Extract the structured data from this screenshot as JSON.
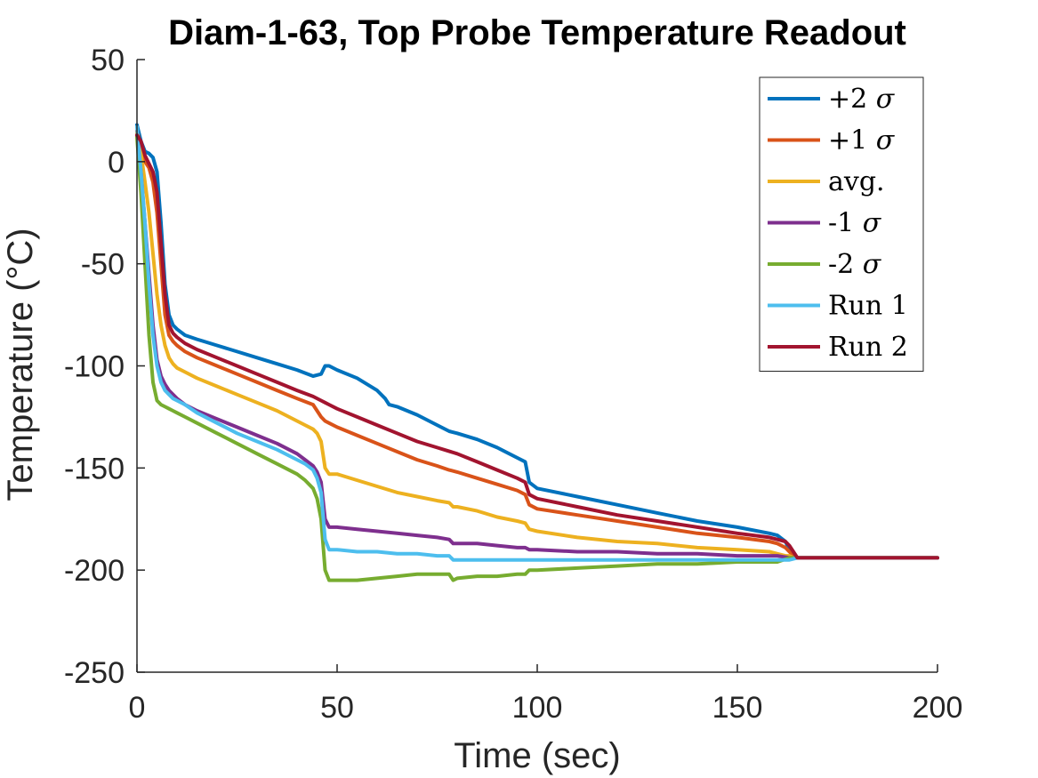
{
  "chart_data": {
    "type": "line",
    "title": "Diam-1-63, Top Probe Temperature Readout",
    "xlabel": "Time (sec)",
    "ylabel": "Temperature (°C)",
    "xlim": [
      0,
      200
    ],
    "ylim": [
      -250,
      50
    ],
    "xticks": [
      0,
      50,
      100,
      150,
      200
    ],
    "yticks": [
      50,
      0,
      -50,
      -100,
      -150,
      -200,
      -250
    ],
    "grid": false,
    "legend_position": "top-right",
    "series": [
      {
        "name": "+2 σ",
        "label_main": "+2",
        "label_sym": "σ",
        "color": "#0072BD",
        "x": [
          0,
          1,
          2,
          3,
          4,
          5,
          6,
          7,
          8,
          9,
          10,
          12,
          15,
          20,
          25,
          30,
          35,
          40,
          44,
          46,
          47,
          48,
          50,
          55,
          60,
          62,
          63,
          65,
          70,
          75,
          78,
          80,
          85,
          90,
          95,
          97,
          98,
          100,
          110,
          120,
          130,
          140,
          150,
          158,
          160,
          162,
          163,
          164,
          165,
          170,
          180,
          190,
          200
        ],
        "y": [
          18,
          10,
          5,
          4,
          2,
          -5,
          -30,
          -60,
          -75,
          -80,
          -82,
          -85,
          -87,
          -90,
          -93,
          -96,
          -99,
          -102,
          -105,
          -104,
          -100,
          -100,
          -102,
          -106,
          -112,
          -116,
          -119,
          -120,
          -124,
          -129,
          -132,
          -133,
          -136,
          -140,
          -145,
          -147,
          -157,
          -160,
          -164,
          -168,
          -172,
          -176,
          -179,
          -182,
          -183,
          -186,
          -190,
          -193,
          -194,
          -194,
          -194,
          -194,
          -194
        ]
      },
      {
        "name": "+1 σ",
        "label_main": "+1",
        "label_sym": "σ",
        "color": "#D95319",
        "x": [
          0,
          1,
          2,
          3,
          4,
          5,
          6,
          7,
          8,
          9,
          10,
          12,
          15,
          20,
          25,
          30,
          35,
          40,
          44,
          45,
          46,
          47,
          48,
          50,
          55,
          60,
          65,
          70,
          75,
          78,
          80,
          85,
          90,
          95,
          97,
          98,
          100,
          110,
          120,
          130,
          140,
          150,
          158,
          160,
          162,
          163,
          164,
          165,
          170,
          180,
          190,
          200
        ],
        "y": [
          15,
          8,
          0,
          -3,
          -10,
          -25,
          -50,
          -75,
          -85,
          -88,
          -90,
          -93,
          -96,
          -100,
          -104,
          -108,
          -112,
          -116,
          -119,
          -122,
          -125,
          -127,
          -128,
          -130,
          -134,
          -138,
          -142,
          -146,
          -149,
          -151,
          -152,
          -155,
          -158,
          -161,
          -163,
          -168,
          -170,
          -173,
          -176,
          -179,
          -182,
          -184,
          -186,
          -187,
          -189,
          -191,
          -193,
          -194,
          -194,
          -194,
          -194,
          -194
        ]
      },
      {
        "name": "avg.",
        "label_main": "avg.",
        "label_sym": "",
        "color": "#EDB120",
        "x": [
          0,
          1,
          2,
          3,
          4,
          5,
          6,
          7,
          8,
          9,
          10,
          12,
          15,
          20,
          25,
          30,
          35,
          40,
          42,
          44,
          45,
          46,
          47,
          48,
          50,
          55,
          60,
          65,
          70,
          75,
          78,
          79,
          80,
          85,
          90,
          95,
          97,
          98,
          100,
          110,
          120,
          130,
          140,
          150,
          158,
          160,
          162,
          163,
          164,
          165,
          170,
          180,
          190,
          200
        ],
        "y": [
          14,
          4,
          -10,
          -25,
          -45,
          -65,
          -80,
          -90,
          -96,
          -99,
          -101,
          -103,
          -106,
          -110,
          -114,
          -118,
          -122,
          -127,
          -129,
          -131,
          -133,
          -137,
          -150,
          -153,
          -153,
          -156,
          -159,
          -162,
          -164,
          -166,
          -167,
          -169,
          -169,
          -171,
          -174,
          -176,
          -177,
          -180,
          -181,
          -184,
          -186,
          -187,
          -189,
          -190,
          -191,
          -192,
          -193,
          -193,
          -194,
          -194,
          -194,
          -194,
          -194,
          -194
        ]
      },
      {
        "name": "-1 σ",
        "label_main": "-1",
        "label_sym": "σ",
        "color": "#7E2F8E",
        "x": [
          0,
          1,
          2,
          3,
          4,
          5,
          6,
          7,
          8,
          9,
          10,
          12,
          15,
          20,
          25,
          30,
          35,
          40,
          42,
          44,
          45,
          46,
          47,
          48,
          50,
          55,
          60,
          65,
          70,
          75,
          78,
          79,
          80,
          85,
          90,
          95,
          97,
          98,
          100,
          110,
          120,
          130,
          140,
          150,
          160,
          163,
          165,
          170,
          180,
          190,
          200
        ],
        "y": [
          13,
          -5,
          -30,
          -55,
          -80,
          -97,
          -105,
          -109,
          -112,
          -114,
          -116,
          -119,
          -122,
          -126,
          -130,
          -134,
          -138,
          -143,
          -146,
          -149,
          -152,
          -157,
          -175,
          -179,
          -179,
          -180,
          -181,
          -182,
          -183,
          -184,
          -185,
          -187,
          -187,
          -187,
          -188,
          -189,
          -189,
          -190,
          -190,
          -191,
          -191,
          -192,
          -192,
          -193,
          -193,
          -194,
          -194,
          -194,
          -194,
          -194,
          -194
        ]
      },
      {
        "name": "-2 σ",
        "label_main": "-2",
        "label_sym": "σ",
        "color": "#77AC30",
        "x": [
          0,
          1,
          2,
          3,
          4,
          5,
          6,
          7,
          8,
          9,
          10,
          12,
          15,
          20,
          25,
          30,
          35,
          40,
          42,
          44,
          45,
          46,
          47,
          48,
          50,
          55,
          60,
          65,
          70,
          75,
          78,
          79,
          80,
          85,
          90,
          95,
          97,
          98,
          100,
          110,
          120,
          130,
          140,
          150,
          160,
          163,
          165,
          170,
          180,
          190,
          200
        ],
        "y": [
          12,
          -15,
          -50,
          -85,
          -108,
          -117,
          -119,
          -120,
          -121,
          -122,
          -123,
          -125,
          -128,
          -133,
          -138,
          -143,
          -148,
          -153,
          -156,
          -160,
          -165,
          -175,
          -200,
          -205,
          -205,
          -205,
          -204,
          -203,
          -202,
          -202,
          -202,
          -205,
          -204,
          -203,
          -203,
          -202,
          -202,
          -200,
          -200,
          -199,
          -198,
          -197,
          -197,
          -196,
          -196,
          -194,
          -194,
          -194,
          -194,
          -194,
          -194
        ]
      },
      {
        "name": "Run 1",
        "label_main": "Run 1",
        "label_sym": "",
        "color": "#4DBEEE",
        "x": [
          0,
          1,
          2,
          3,
          4,
          5,
          6,
          7,
          8,
          9,
          10,
          12,
          15,
          20,
          25,
          30,
          35,
          40,
          42,
          44,
          45,
          46,
          47,
          48,
          50,
          55,
          60,
          65,
          70,
          75,
          78,
          79,
          80,
          85,
          90,
          95,
          100,
          110,
          120,
          130,
          140,
          150,
          160,
          163,
          165,
          170,
          180,
          190,
          200
        ],
        "y": [
          17,
          -5,
          -30,
          -60,
          -85,
          -100,
          -108,
          -112,
          -114,
          -116,
          -117,
          -119,
          -123,
          -128,
          -133,
          -137,
          -141,
          -146,
          -148,
          -151,
          -155,
          -162,
          -185,
          -190,
          -190,
          -191,
          -191,
          -192,
          -192,
          -193,
          -193,
          -195,
          -195,
          -195,
          -195,
          -195,
          -195,
          -195,
          -195,
          -195,
          -195,
          -195,
          -195,
          -195,
          -194,
          -194,
          -194,
          -194,
          -194
        ]
      },
      {
        "name": "Run 2",
        "label_main": "Run 2",
        "label_sym": "",
        "color": "#A2142F",
        "x": [
          0,
          1,
          2,
          3,
          4,
          5,
          6,
          7,
          8,
          9,
          10,
          12,
          15,
          20,
          25,
          30,
          35,
          40,
          44,
          46,
          47,
          48,
          50,
          55,
          60,
          65,
          70,
          75,
          80,
          85,
          90,
          95,
          97,
          98,
          100,
          110,
          120,
          130,
          140,
          150,
          158,
          160,
          162,
          163,
          164,
          165,
          170,
          180,
          190,
          200
        ],
        "y": [
          13,
          10,
          3,
          -1,
          -5,
          -15,
          -40,
          -65,
          -80,
          -84,
          -86,
          -89,
          -92,
          -96,
          -100,
          -104,
          -108,
          -112,
          -115,
          -117,
          -118,
          -119,
          -121,
          -125,
          -129,
          -133,
          -137,
          -140,
          -143,
          -147,
          -151,
          -155,
          -157,
          -163,
          -165,
          -169,
          -173,
          -176,
          -179,
          -182,
          -184,
          -185,
          -186,
          -188,
          -191,
          -194,
          -194,
          -194,
          -194,
          -194
        ]
      }
    ]
  }
}
